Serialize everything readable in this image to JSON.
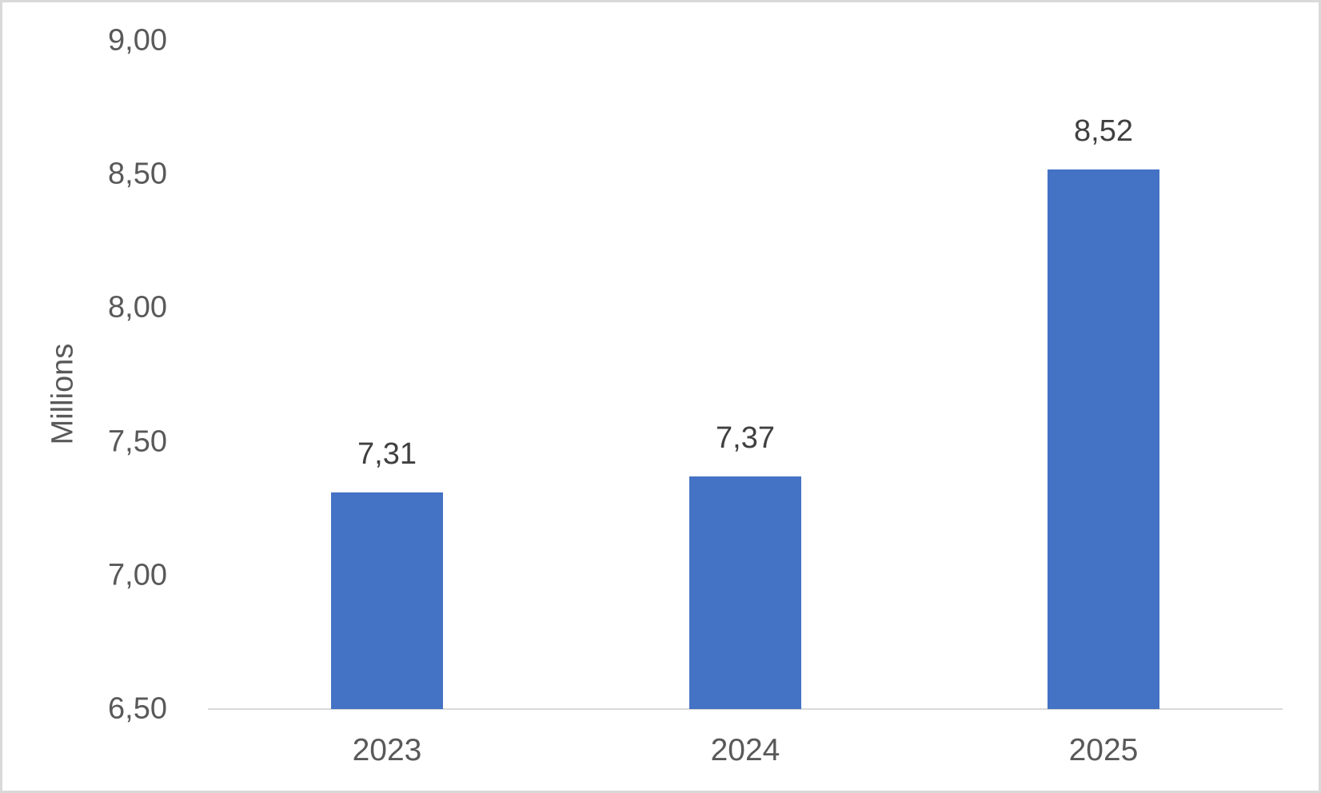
{
  "chart_data": {
    "type": "bar",
    "title": "",
    "xlabel": "",
    "ylabel": "Millions",
    "categories": [
      "2023",
      "2024",
      "2025"
    ],
    "values": [
      7.31,
      7.37,
      8.52
    ],
    "value_labels": [
      "7,31",
      "7,37",
      "8,52"
    ],
    "ylim": [
      6.5,
      9.0
    ],
    "yticks": [
      {
        "value": 9.0,
        "label": "9,00"
      },
      {
        "value": 8.5,
        "label": "8,50"
      },
      {
        "value": 8.0,
        "label": "8,00"
      },
      {
        "value": 7.5,
        "label": "7,50"
      },
      {
        "value": 7.0,
        "label": "7,00"
      },
      {
        "value": 6.5,
        "label": "6,50"
      }
    ],
    "grid": false,
    "legend": "none",
    "decimal_separator": ",",
    "colors": {
      "bar": "#4472C4",
      "tick_text": "#595959",
      "value_label_text": "#404040",
      "axis_line": "#D9D9D9",
      "border": "#D9D9D9",
      "background": "#FFFFFF"
    }
  }
}
